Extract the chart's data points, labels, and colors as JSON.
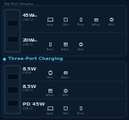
{
  "bg_color": "#0a1628",
  "card_color": "#0d1e30",
  "card_border": "#1a3048",
  "title_color": "#4db8d4",
  "title_dot_color": "#4db8d4",
  "text_color": "#ccd8e0",
  "subtext_color": "#5a7a8a",
  "icon_color": "#8ab0c0",
  "section1_title": "Two-Port Charging",
  "section2_title": "Three-Port Charging",
  "port1_rows": [
    {
      "power": "45W",
      "power_suffix": "Max",
      "port": "USB C2",
      "devices": [
        "Laptop",
        "Tablet",
        "iPhone",
        "EarBuds",
        "iWatch"
      ]
    },
    {
      "power": "20W",
      "power_suffix": "Max",
      "port": "USB C1",
      "devices": [
        "iPhone",
        "EarBuds",
        "iWatch"
      ]
    }
  ],
  "port2_rows": [
    {
      "power": "8.5W",
      "power_suffix": "",
      "port": "USB A",
      "devices": [
        "iWatch",
        "EarBuds"
      ]
    },
    {
      "power": "8.5W",
      "power_suffix": "",
      "port": "USB C2",
      "devices": [
        "EarBuds",
        "iWatch"
      ]
    },
    {
      "power": "PD 45W",
      "power_suffix": "",
      "port": "USB C1",
      "devices": [
        "Laptop",
        "Tablet",
        "iPhone"
      ]
    }
  ]
}
